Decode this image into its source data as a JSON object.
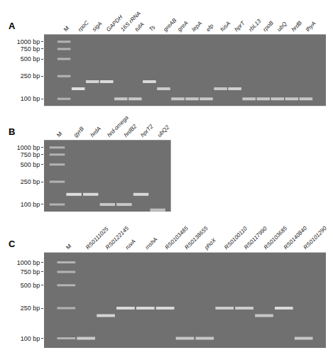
{
  "chart_data": [
    {
      "type": "scatter",
      "title": "A",
      "categories": [
        "M",
        "rpoC",
        "sigA",
        "GAPDH",
        "16S rRNA",
        "tufA",
        "Ts",
        "greAB",
        "greA",
        "lepA",
        "efp",
        "fusA",
        "hprT",
        "rbL13",
        "rpoB",
        "ubQ",
        "hrdB",
        "thyA"
      ],
      "values": [
        null,
        150,
        200,
        200,
        100,
        100,
        200,
        150,
        100,
        100,
        100,
        150,
        150,
        100,
        100,
        100,
        100,
        100
      ],
      "colors": [
        null,
        "#dedede",
        "#d4d4d4",
        "#dbdbdb",
        "#c7c7c7",
        "#c7c7c7",
        "#d9d9d9",
        "#cccccc",
        "#c7c7c7",
        "#c7c7c7",
        "#c7c7c7",
        "#c7c7c7",
        "#d1d1d1",
        "#c7c7c7",
        "#c7c7c7",
        "#c7c7c7",
        "#c7c7c7",
        "#c7c7c7"
      ],
      "marker_bands": [
        1000,
        750,
        500,
        250,
        100
      ],
      "marker": "line",
      "log": "y",
      "ylim": [
        75,
        1350
      ],
      "yticks": [
        {
          "value": 100,
          "label": "100 bp"
        },
        {
          "value": 250,
          "label": "250 bp"
        },
        {
          "value": 500,
          "label": "500 bp"
        },
        {
          "value": 750,
          "label": "750 bp"
        },
        {
          "value": 1000,
          "label": "1000 bp"
        }
      ],
      "grid": false
    },
    {
      "type": "scatter",
      "title": "B",
      "categories": [
        "M",
        "gyrB",
        "hrdA",
        "hrd-omega",
        "hrdB2",
        "hprT2",
        "ubQ2"
      ],
      "values": [
        null,
        150,
        150,
        100,
        100,
        150,
        80
      ],
      "colors": [
        null,
        "#e0e0e0",
        "#d9d9d9",
        "#c7c7c7",
        "#c7c7c7",
        "#d9d9d9",
        "#bfbfbf"
      ],
      "marker_bands": [
        1000,
        750,
        500,
        250,
        100
      ],
      "marker": "line",
      "log": "y",
      "ylim": [
        75,
        1350
      ],
      "yticks": [
        {
          "value": 100,
          "label": "100 bp"
        },
        {
          "value": 250,
          "label": "250 bp"
        },
        {
          "value": 500,
          "label": "500 bp"
        },
        {
          "value": 750,
          "label": "750 bp"
        },
        {
          "value": 1000,
          "label": "1000 bp"
        }
      ],
      "grid": false
    },
    {
      "type": "scatter",
      "title": "C",
      "categories": [
        "M",
        "RS0111025",
        "RS0122145",
        "ruvA",
        "mshA",
        "RS0103485",
        "RS0138655",
        "phoX",
        "RS0100110",
        "RS0117990",
        "RS0103685",
        "RS0140840",
        "RS0101290"
      ],
      "values": [
        null,
        100,
        200,
        250,
        250,
        250,
        100,
        100,
        250,
        250,
        200,
        250,
        100
      ],
      "colors": [
        null,
        "#cccccc",
        "#d4d4d4",
        "#d9d9d9",
        "#d9d9d9",
        "#d9d9d9",
        "#c7c7c7",
        "#c7c7c7",
        "#cccccc",
        "#cccccc",
        "#c7c7c7",
        "#d9d9d9",
        "#c7c7c7"
      ],
      "marker_bands": [
        1000,
        750,
        500,
        250,
        100
      ],
      "marker": "line",
      "log": "y",
      "ylim": [
        75,
        1350
      ],
      "yticks": [
        {
          "value": 100,
          "label": "100 bp"
        },
        {
          "value": 250,
          "label": "250 bp"
        },
        {
          "value": 500,
          "label": "500 bp"
        },
        {
          "value": 750,
          "label": "750 bp"
        },
        {
          "value": 1000,
          "label": "1000 bp"
        }
      ],
      "grid": false
    }
  ]
}
